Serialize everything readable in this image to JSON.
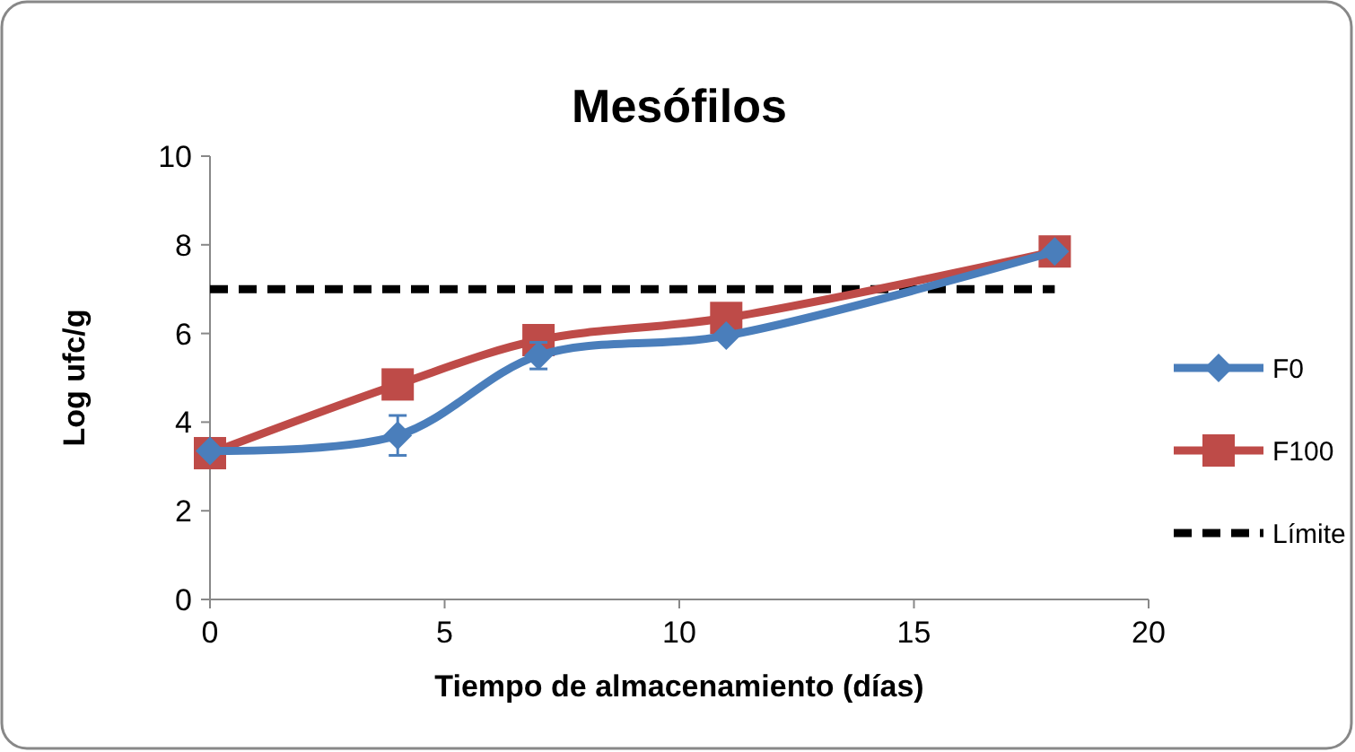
{
  "chart_data": {
    "type": "line",
    "title": "Mesófilos",
    "xlabel": "Tiempo de almacenamiento (días)",
    "ylabel": "Log ufc/g",
    "xlim": [
      0,
      20
    ],
    "xticks": [
      0,
      5,
      10,
      15,
      20
    ],
    "ylim": [
      0,
      10
    ],
    "yticks": [
      0,
      2,
      4,
      6,
      8,
      10
    ],
    "grid": false,
    "legend": "right",
    "series": [
      {
        "name": "F0",
        "color": "#4a7ebb",
        "x": [
          0,
          4,
          7,
          11,
          18
        ],
        "values": [
          3.35,
          3.7,
          5.5,
          5.95,
          7.85
        ],
        "errors": [
          null,
          0.45,
          0.3,
          null,
          null
        ],
        "marker": "diamond",
        "line_style": "solid"
      },
      {
        "name": "F100",
        "color": "#be4b48",
        "x": [
          0,
          4,
          7,
          11,
          18
        ],
        "values": [
          3.3,
          4.85,
          5.85,
          6.35,
          7.85
        ],
        "errors": [
          null,
          0.3,
          null,
          null,
          null
        ],
        "marker": "square",
        "line_style": "solid"
      },
      {
        "name": "Límite",
        "color": "#000000",
        "x": [
          0,
          18
        ],
        "values": [
          7,
          7
        ],
        "marker": "none",
        "line_style": "dashed"
      }
    ]
  }
}
